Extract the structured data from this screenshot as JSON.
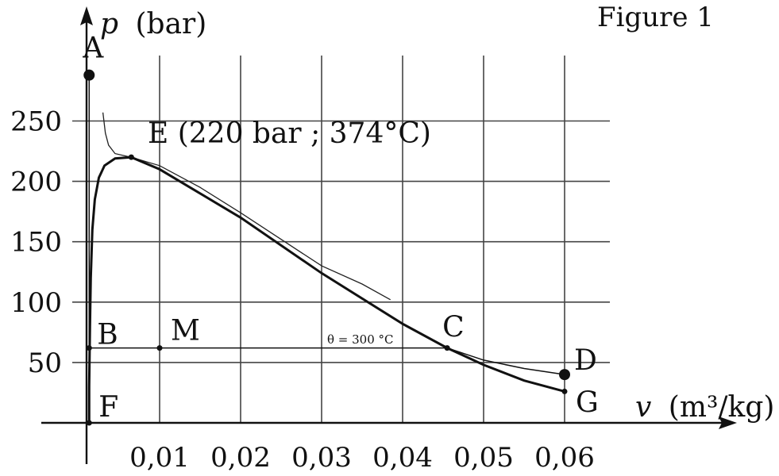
{
  "chart_data": {
    "type": "line",
    "title": "Figure 1",
    "ylabel_symbol": "p",
    "ylabel_unit": "(bar)",
    "xlabel_symbol": "v",
    "xlabel_unit": "(m³/kg)",
    "x_ticks": [
      {
        "value": 0.01,
        "label": "0,01"
      },
      {
        "value": 0.02,
        "label": "0,02"
      },
      {
        "value": 0.03,
        "label": "0,03"
      },
      {
        "value": 0.04,
        "label": "0,04"
      },
      {
        "value": 0.05,
        "label": "0,05"
      },
      {
        "value": 0.06,
        "label": "0,06"
      }
    ],
    "y_ticks": [
      {
        "value": 50,
        "label": "50"
      },
      {
        "value": 100,
        "label": "100"
      },
      {
        "value": 150,
        "label": "150"
      },
      {
        "value": 200,
        "label": "200"
      },
      {
        "value": 250,
        "label": "250"
      }
    ],
    "xlim": [
      -0.0002,
      0.0645
    ],
    "ylim": [
      -10,
      345
    ],
    "grid": true,
    "saturation_curve": [
      [
        0.0013,
        0
      ],
      [
        0.0013,
        30
      ],
      [
        0.0014,
        80
      ],
      [
        0.0015,
        120
      ],
      [
        0.0017,
        160
      ],
      [
        0.002,
        185
      ],
      [
        0.0025,
        203
      ],
      [
        0.0032,
        213
      ],
      [
        0.0045,
        219
      ],
      [
        0.0065,
        220
      ],
      [
        0.01,
        210
      ],
      [
        0.02,
        170
      ],
      [
        0.03,
        124
      ],
      [
        0.04,
        82
      ],
      [
        0.0455,
        62
      ],
      [
        0.05,
        48
      ],
      [
        0.055,
        35
      ],
      [
        0.06,
        26
      ]
    ],
    "critical_isotherm": [
      [
        0.003,
        257
      ],
      [
        0.0033,
        240
      ],
      [
        0.0037,
        230
      ],
      [
        0.0045,
        223
      ],
      [
        0.0065,
        220
      ],
      [
        0.01,
        213
      ],
      [
        0.015,
        195
      ],
      [
        0.02,
        174
      ],
      [
        0.025,
        152
      ],
      [
        0.03,
        130
      ],
      [
        0.035,
        115
      ],
      [
        0.0385,
        102
      ]
    ],
    "isotherm_300": {
      "label": "θ = 300 °C",
      "points": [
        [
          0.0013,
          290
        ],
        [
          0.0013,
          62
        ],
        [
          0.0455,
          62
        ],
        [
          0.05,
          52
        ],
        [
          0.055,
          45
        ],
        [
          0.06,
          40
        ]
      ]
    },
    "points": [
      {
        "name": "A",
        "x": 0.0013,
        "y": 288,
        "style": "large"
      },
      {
        "name": "B",
        "x": 0.0013,
        "y": 62,
        "style": "small"
      },
      {
        "name": "M",
        "x": 0.01,
        "y": 62,
        "style": "small"
      },
      {
        "name": "C",
        "x": 0.0455,
        "y": 62,
        "style": "small"
      },
      {
        "name": "D",
        "x": 0.06,
        "y": 40,
        "style": "large"
      },
      {
        "name": "G",
        "x": 0.06,
        "y": 26,
        "style": "small"
      },
      {
        "name": "F",
        "x": 0.0013,
        "y": 0,
        "style": "small"
      },
      {
        "name": "E",
        "x": 0.0065,
        "y": 220,
        "style": "small"
      }
    ],
    "annotation_E": "E (220 bar ; 374°C)"
  }
}
